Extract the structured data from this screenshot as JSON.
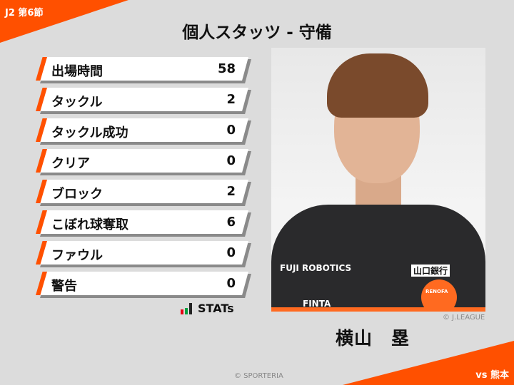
{
  "header": {
    "round": "J2 第6節",
    "title": "個人スタッツ - 守備"
  },
  "stats": [
    {
      "label": "出場時間",
      "value": "58"
    },
    {
      "label": "タックル",
      "value": "2"
    },
    {
      "label": "タックル成功",
      "value": "0"
    },
    {
      "label": "クリア",
      "value": "0"
    },
    {
      "label": "ブロック",
      "value": "2"
    },
    {
      "label": "こぼれ球奪取",
      "value": "6"
    },
    {
      "label": "ファウル",
      "value": "0"
    },
    {
      "label": "警告",
      "value": "0"
    }
  ],
  "logo": {
    "text": "STATs",
    "colors": [
      "#e60012",
      "#00a040",
      "#222222"
    ]
  },
  "player": {
    "name": "横山　塁",
    "photo_credit": "© J.LEAGUE",
    "sponsors": [
      "FUJI ROBOTICS",
      "山口銀行",
      "FINTA",
      "RENOFA"
    ]
  },
  "footer": {
    "credit": "© SPORTERIA",
    "opponent": "vs 熊本"
  },
  "colors": {
    "accent": "#ff5000",
    "background": "#dcdcdc"
  }
}
